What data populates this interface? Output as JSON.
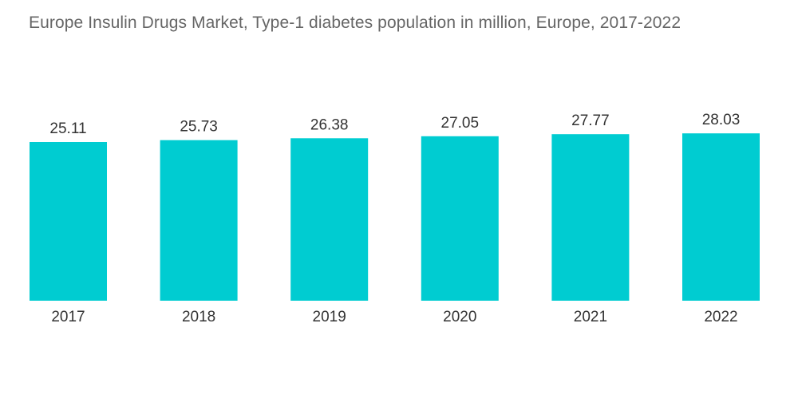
{
  "title": "Europe Insulin Drugs Market, Type-1 diabetes population in million, Europe, 2017-2022",
  "colors": {
    "bar": "#00CCD1",
    "text": "#333333",
    "title": "#666666"
  },
  "chart_data": {
    "type": "bar",
    "title": "Europe Insulin Drugs Market, Type-1 diabetes population in million, Europe, 2017-2022",
    "categories": [
      "2017",
      "2018",
      "2019",
      "2020",
      "2021",
      "2022"
    ],
    "values": [
      25.11,
      25.73,
      26.38,
      27.05,
      27.77,
      28.03
    ],
    "xlabel": "",
    "ylabel": "",
    "grid": false,
    "legend": "none"
  }
}
